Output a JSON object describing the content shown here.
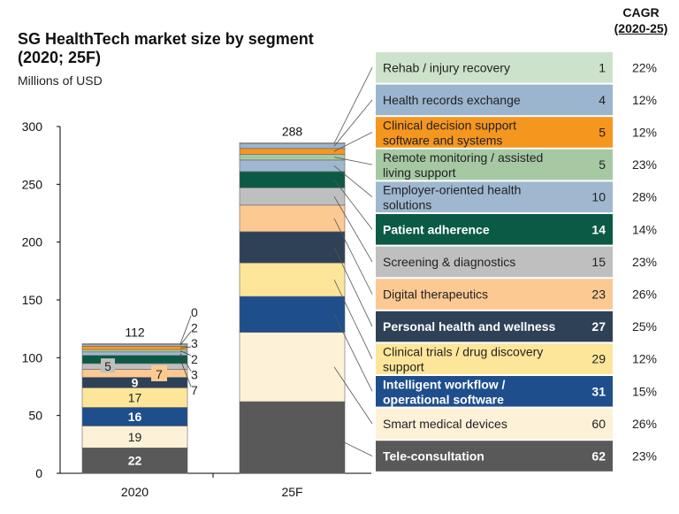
{
  "header": {
    "title_line1": "SG HealthTech market size by segment",
    "title_line2": "(2020; 25F)",
    "subtitle": "Millions of USD",
    "cagr_title": "CAGR",
    "cagr_period": "(2020-25)"
  },
  "chart_data": {
    "type": "bar",
    "stacked": true,
    "title": "SG HealthTech market size by segment (2020; 25F)",
    "ylabel": "Millions of USD",
    "ylim": [
      0,
      300
    ],
    "yticks": [
      0,
      50,
      100,
      150,
      200,
      250,
      300
    ],
    "categories": [
      "2020",
      "25F"
    ],
    "totals": [
      112,
      288
    ],
    "grid": false,
    "legend_placement": "right",
    "series": [
      {
        "name": "Tele-consultation",
        "values": [
          22,
          62
        ],
        "cagr": "23%",
        "color": "#595959",
        "dark": true
      },
      {
        "name": "Smart medical devices",
        "values": [
          19,
          60
        ],
        "cagr": "26%",
        "color": "#fdf1d8",
        "dark": false
      },
      {
        "name": "Intelligent workflow / operational software",
        "values": [
          16,
          31
        ],
        "cagr": "15%",
        "color": "#1f4e8c",
        "dark": true
      },
      {
        "name": "Clinical trials / drug discovery support",
        "values": [
          17,
          29
        ],
        "cagr": "12%",
        "color": "#fde69a",
        "dark": false
      },
      {
        "name": "Personal health and wellness",
        "values": [
          9,
          27
        ],
        "cagr": "25%",
        "color": "#2e4156",
        "dark": true
      },
      {
        "name": "Digital therapeutics",
        "values": [
          7,
          23
        ],
        "cagr": "26%",
        "color": "#fcc993",
        "dark": false
      },
      {
        "name": "Screening & diagnostics",
        "values": [
          5,
          15
        ],
        "cagr": "23%",
        "color": "#bfbfbf",
        "dark": false
      },
      {
        "name": "Patient adherence",
        "values": [
          7,
          14
        ],
        "cagr": "14%",
        "color": "#0b5a45",
        "dark": true
      },
      {
        "name": "Employer-oriented health solutions",
        "values": [
          3,
          10
        ],
        "cagr": "28%",
        "color": "#9fb8d0",
        "dark": false
      },
      {
        "name": "Remote monitoring / assisted living support",
        "values": [
          2,
          5
        ],
        "cagr": "23%",
        "color": "#a6c9a4",
        "dark": false
      },
      {
        "name": "Clinical decision support software and systems",
        "values": [
          3,
          5
        ],
        "cagr": "12%",
        "color": "#f5961f",
        "dark": false
      },
      {
        "name": "Health records exchange",
        "values": [
          2,
          4
        ],
        "cagr": "12%",
        "color": "#9bb5cf",
        "dark": false
      },
      {
        "name": "Rehab / injury recovery",
        "values": [
          0,
          1
        ],
        "cagr": "22%",
        "color": "#cde2ca",
        "dark": false
      }
    ]
  }
}
